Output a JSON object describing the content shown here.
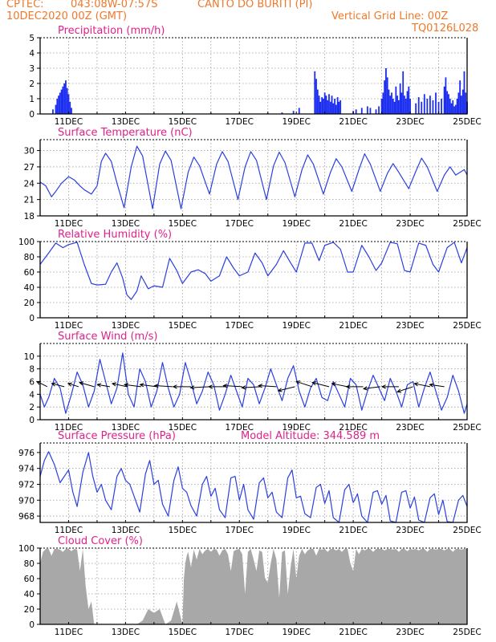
{
  "header": {
    "source": "CPTEC:",
    "coords": "043:08W-07:57S",
    "location": "CANTO DO BURITI (PI)",
    "datetime": "10DEC2020 00Z (GMT)",
    "grid_note": "Vertical Grid Line: 00Z",
    "code": "TQ0126L028"
  },
  "colors": {
    "header": "#f0782a",
    "title": "#e0208c",
    "series": "#2a3fe0",
    "bar": "#1c2ef0",
    "cloud": "#a8a8a8"
  },
  "x_axis": {
    "start_day": 10,
    "end_day": 25,
    "tick_labels": [
      "11DEC",
      "13DEC",
      "15DEC",
      "17DEC",
      "19DEC",
      "21DEC",
      "23DEC",
      "25DEC"
    ]
  },
  "chart_data": [
    {
      "id": "precip",
      "type": "bar",
      "title": "Precipitation (mm/h)",
      "ylim": [
        0,
        5
      ],
      "yticks": [
        0,
        1,
        2,
        3,
        4,
        5
      ],
      "x": [
        10.45,
        10.55,
        10.6,
        10.65,
        10.7,
        10.75,
        10.8,
        10.85,
        10.9,
        10.95,
        11.0,
        11.05,
        11.1,
        12.9,
        14.0,
        15.0,
        16.0,
        17.0,
        18.0,
        18.5,
        18.9,
        19.1,
        19.65,
        19.7,
        19.75,
        19.8,
        19.85,
        19.9,
        19.95,
        20.0,
        20.05,
        20.1,
        20.15,
        20.2,
        20.25,
        20.3,
        20.35,
        20.4,
        20.45,
        20.5,
        20.55,
        21.0,
        21.1,
        21.3,
        21.5,
        21.6,
        21.8,
        21.9,
        22.0,
        22.05,
        22.1,
        22.15,
        22.2,
        22.25,
        22.3,
        22.35,
        22.4,
        22.45,
        22.5,
        22.55,
        22.6,
        22.65,
        22.7,
        22.75,
        22.8,
        22.85,
        22.9,
        22.95,
        23.0,
        23.2,
        23.3,
        23.4,
        23.5,
        23.6,
        23.7,
        23.8,
        23.9,
        24.0,
        24.1,
        24.2,
        24.25,
        24.3,
        24.35,
        24.4,
        24.45,
        24.5,
        24.55,
        24.6,
        24.65,
        24.7,
        24.75,
        24.8,
        24.85,
        24.9,
        24.95,
        25.0
      ],
      "values": [
        0.3,
        0.6,
        1.0,
        1.2,
        1.4,
        1.6,
        1.8,
        2.0,
        2.2,
        1.7,
        1.3,
        0.8,
        0.4,
        0.05,
        0.05,
        0.05,
        0.05,
        0.05,
        0.05,
        0.1,
        0.2,
        0.4,
        2.8,
        2.3,
        1.6,
        1.2,
        0.8,
        1.1,
        1.0,
        1.4,
        1.2,
        0.9,
        1.3,
        0.8,
        1.2,
        0.7,
        1.0,
        0.6,
        1.1,
        0.8,
        0.9,
        0.2,
        0.3,
        0.4,
        0.5,
        0.4,
        0.3,
        0.5,
        1.0,
        1.4,
        2.2,
        3.0,
        2.4,
        1.6,
        1.2,
        1.4,
        1.0,
        0.8,
        1.8,
        1.2,
        0.9,
        2.0,
        1.4,
        2.8,
        1.2,
        1.0,
        1.5,
        1.8,
        1.0,
        0.7,
        1.1,
        0.8,
        1.3,
        1.0,
        1.2,
        0.9,
        1.4,
        0.8,
        1.0,
        1.8,
        2.4,
        1.5,
        1.3,
        1.0,
        0.7,
        0.9,
        0.5,
        0.6,
        1.0,
        1.4,
        2.2,
        1.2,
        1.6,
        2.8,
        1.4,
        0.8
      ]
    },
    {
      "id": "temp",
      "type": "line",
      "title": "Surface Temperature (nC)",
      "ylim": [
        18,
        32
      ],
      "yticks": [
        18,
        21,
        24,
        27,
        30
      ],
      "x": [
        10.0,
        10.2,
        10.4,
        10.55,
        10.75,
        11.0,
        11.2,
        11.4,
        11.55,
        11.8,
        12.0,
        12.15,
        12.3,
        12.5,
        12.7,
        12.95,
        13.2,
        13.4,
        13.6,
        13.95,
        14.2,
        14.4,
        14.6,
        14.95,
        15.2,
        15.4,
        15.6,
        15.95,
        16.2,
        16.4,
        16.6,
        16.95,
        17.2,
        17.4,
        17.6,
        17.95,
        18.2,
        18.4,
        18.6,
        18.95,
        19.2,
        19.4,
        19.6,
        19.95,
        20.2,
        20.4,
        20.6,
        20.95,
        21.2,
        21.4,
        21.6,
        21.95,
        22.2,
        22.4,
        22.6,
        22.95,
        23.2,
        23.4,
        23.6,
        23.95,
        24.2,
        24.4,
        24.6,
        24.9,
        25.0
      ],
      "values": [
        24.2,
        23.5,
        21.5,
        22.5,
        24.0,
        25.2,
        24.6,
        23.5,
        22.8,
        22.0,
        23.5,
        28.0,
        29.5,
        28.0,
        24.0,
        19.5,
        27.0,
        30.8,
        29.0,
        19.3,
        27.5,
        29.9,
        28.2,
        19.3,
        26.0,
        28.8,
        27.2,
        22.0,
        27.5,
        29.8,
        28.0,
        21.0,
        27.0,
        29.8,
        28.2,
        21.0,
        27.2,
        29.7,
        27.8,
        21.5,
        26.5,
        29.2,
        27.5,
        22.0,
        26.0,
        28.5,
        27.0,
        22.5,
        26.5,
        29.4,
        27.5,
        22.5,
        25.8,
        27.6,
        26.0,
        23.0,
        26.2,
        28.6,
        27.0,
        22.5,
        25.5,
        27.0,
        25.5,
        26.5,
        25.5
      ]
    },
    {
      "id": "rh",
      "type": "line",
      "title": "Relative Humidity (%)",
      "ylim": [
        0,
        100
      ],
      "yticks": [
        0,
        20,
        40,
        60,
        80,
        100
      ],
      "x": [
        10.0,
        10.3,
        10.55,
        10.8,
        11.0,
        11.3,
        11.55,
        11.8,
        12.0,
        12.3,
        12.5,
        12.7,
        12.9,
        13.05,
        13.2,
        13.4,
        13.55,
        13.8,
        14.0,
        14.3,
        14.55,
        14.8,
        15.0,
        15.3,
        15.55,
        15.8,
        16.0,
        16.3,
        16.55,
        16.8,
        17.0,
        17.3,
        17.55,
        17.8,
        18.0,
        18.3,
        18.55,
        18.8,
        19.0,
        19.3,
        19.55,
        19.8,
        20.0,
        20.3,
        20.55,
        20.8,
        21.0,
        21.3,
        21.55,
        21.8,
        22.0,
        22.3,
        22.55,
        22.8,
        23.0,
        23.3,
        23.55,
        23.8,
        24.0,
        24.3,
        24.55,
        24.8,
        25.0
      ],
      "values": [
        70,
        85,
        98,
        92,
        96,
        99,
        70,
        45,
        43,
        44,
        60,
        72,
        52,
        30,
        24,
        35,
        55,
        38,
        42,
        40,
        78,
        62,
        45,
        60,
        63,
        58,
        48,
        55,
        80,
        65,
        55,
        60,
        85,
        72,
        55,
        70,
        88,
        72,
        60,
        98,
        98,
        75,
        95,
        99,
        90,
        60,
        60,
        95,
        80,
        62,
        72,
        99,
        97,
        62,
        60,
        98,
        95,
        70,
        60,
        92,
        99,
        72,
        92
      ]
    },
    {
      "id": "wind",
      "type": "line",
      "title": "Surface Wind (m/s)",
      "ylim": [
        0,
        12
      ],
      "yticks": [
        0,
        2,
        4,
        6,
        8,
        10
      ],
      "x": [
        10.0,
        10.15,
        10.3,
        10.5,
        10.7,
        10.9,
        11.1,
        11.3,
        11.5,
        11.7,
        11.9,
        12.1,
        12.3,
        12.5,
        12.7,
        12.9,
        13.1,
        13.3,
        13.5,
        13.7,
        13.9,
        14.1,
        14.3,
        14.5,
        14.7,
        14.9,
        15.1,
        15.3,
        15.5,
        15.7,
        15.9,
        16.1,
        16.3,
        16.5,
        16.7,
        16.9,
        17.1,
        17.3,
        17.5,
        17.7,
        17.9,
        18.1,
        18.3,
        18.5,
        18.7,
        18.9,
        19.1,
        19.3,
        19.5,
        19.7,
        19.9,
        20.1,
        20.3,
        20.5,
        20.7,
        20.9,
        21.1,
        21.3,
        21.5,
        21.7,
        21.9,
        22.1,
        22.3,
        22.5,
        22.7,
        22.9,
        23.1,
        23.3,
        23.5,
        23.7,
        23.9,
        24.1,
        24.3,
        24.5,
        24.7,
        24.9,
        25.0
      ],
      "values": [
        4.0,
        2.0,
        3.5,
        6.5,
        5.0,
        1.0,
        4.0,
        7.5,
        5.5,
        2.0,
        4.5,
        9.5,
        6.0,
        2.5,
        5.0,
        10.5,
        4.0,
        2.0,
        8.0,
        6.0,
        2.0,
        4.5,
        9.0,
        5.0,
        2.0,
        4.0,
        9.0,
        6.0,
        2.5,
        4.5,
        7.5,
        5.5,
        1.5,
        4.0,
        7.0,
        4.5,
        2.0,
        6.5,
        5.5,
        2.5,
        5.0,
        8.0,
        5.5,
        3.0,
        6.5,
        8.5,
        4.5,
        2.0,
        5.0,
        6.5,
        3.5,
        3.0,
        6.0,
        4.0,
        2.0,
        6.5,
        5.5,
        1.5,
        4.5,
        7.0,
        5.0,
        3.0,
        6.5,
        4.5,
        2.0,
        5.5,
        6.0,
        2.0,
        5.0,
        7.5,
        4.5,
        1.5,
        3.5,
        7.0,
        4.5,
        1.0,
        2.5
      ],
      "arrows": [
        [
          10.25,
          -0.5,
          0.25
        ],
        [
          10.85,
          -0.6,
          0.15
        ],
        [
          11.35,
          -0.5,
          0.15
        ],
        [
          11.9,
          -0.7,
          0.2
        ],
        [
          12.45,
          -0.6,
          0.1
        ],
        [
          13.05,
          -0.7,
          0.15
        ],
        [
          13.55,
          -0.8,
          0.1
        ],
        [
          14.1,
          -0.8,
          0.1
        ],
        [
          14.65,
          -0.85,
          0.05
        ],
        [
          15.3,
          -0.85,
          0.0
        ],
        [
          15.95,
          -0.9,
          -0.05
        ],
        [
          16.55,
          -0.85,
          0.0
        ],
        [
          17.1,
          -0.9,
          0.05
        ],
        [
          17.75,
          -0.9,
          -0.05
        ],
        [
          18.3,
          -0.85,
          0.05
        ],
        [
          18.95,
          -0.8,
          -0.2
        ],
        [
          19.55,
          -0.75,
          0.25
        ],
        [
          20.15,
          -0.8,
          0.2
        ],
        [
          20.8,
          -0.75,
          0.15
        ],
        [
          21.35,
          -0.8,
          0.0
        ],
        [
          21.95,
          -0.8,
          -0.1
        ],
        [
          22.6,
          -0.8,
          0.0
        ],
        [
          23.1,
          -0.75,
          -0.25
        ],
        [
          23.7,
          -0.75,
          0.15
        ],
        [
          24.2,
          -0.7,
          0.1
        ]
      ]
    },
    {
      "id": "pres",
      "type": "line",
      "title": "Surface Pressure (hPa)",
      "subtitle": "Model Altitude: 344.589 m",
      "ylim": [
        967.2,
        977.2
      ],
      "yticks": [
        968,
        970,
        972,
        974,
        976
      ],
      "x": [
        10.0,
        10.15,
        10.3,
        10.5,
        10.7,
        10.85,
        11.0,
        11.15,
        11.3,
        11.5,
        11.7,
        11.85,
        12.0,
        12.15,
        12.3,
        12.5,
        12.7,
        12.85,
        13.0,
        13.15,
        13.3,
        13.5,
        13.7,
        13.85,
        14.0,
        14.15,
        14.3,
        14.5,
        14.7,
        14.85,
        15.0,
        15.15,
        15.3,
        15.5,
        15.7,
        15.85,
        16.0,
        16.15,
        16.3,
        16.5,
        16.7,
        16.85,
        17.0,
        17.15,
        17.3,
        17.5,
        17.7,
        17.85,
        18.0,
        18.15,
        18.3,
        18.5,
        18.7,
        18.85,
        19.0,
        19.15,
        19.3,
        19.5,
        19.7,
        19.85,
        20.0,
        20.15,
        20.3,
        20.5,
        20.7,
        20.85,
        21.0,
        21.15,
        21.3,
        21.5,
        21.7,
        21.85,
        22.0,
        22.15,
        22.3,
        22.5,
        22.7,
        22.85,
        23.0,
        23.15,
        23.3,
        23.5,
        23.7,
        23.85,
        24.0,
        24.15,
        24.3,
        24.5,
        24.7,
        24.85,
        25.0
      ],
      "values": [
        973.0,
        975.0,
        976.1,
        974.5,
        972.2,
        973.0,
        973.8,
        971.0,
        969.2,
        973.5,
        976.0,
        973.0,
        971.0,
        972.0,
        970.0,
        968.8,
        973.0,
        974.0,
        972.5,
        972.0,
        970.5,
        968.5,
        973.3,
        975.0,
        972.0,
        972.5,
        969.5,
        968.0,
        972.5,
        974.2,
        971.5,
        971.0,
        969.3,
        968.0,
        972.0,
        973.0,
        970.5,
        971.5,
        968.8,
        967.8,
        972.8,
        973.0,
        970.0,
        972.0,
        968.8,
        967.6,
        972.2,
        972.8,
        970.3,
        971.0,
        968.5,
        967.8,
        972.8,
        973.8,
        970.3,
        970.5,
        968.3,
        967.8,
        971.6,
        972.0,
        969.6,
        971.2,
        967.8,
        967.0,
        971.3,
        972.0,
        969.7,
        970.8,
        968.0,
        967.0,
        971.0,
        971.2,
        969.5,
        970.6,
        967.4,
        966.8,
        971.0,
        971.2,
        969.0,
        970.4,
        967.5,
        966.8,
        970.3,
        970.8,
        968.2,
        970.0,
        967.3,
        966.8,
        970.0,
        970.6,
        969.2
      ]
    },
    {
      "id": "cloud",
      "type": "area",
      "title": "Cloud Cover (%)",
      "ylim": [
        0,
        100
      ],
      "yticks": [
        0,
        20,
        40,
        60,
        80,
        100
      ],
      "x": [
        10.0,
        10.1,
        10.2,
        10.3,
        10.4,
        10.5,
        10.6,
        10.7,
        10.8,
        10.9,
        11.0,
        11.1,
        11.2,
        11.3,
        11.4,
        11.5,
        11.6,
        11.7,
        11.8,
        11.9,
        12.0,
        12.2,
        12.4,
        12.6,
        12.8,
        13.0,
        13.2,
        13.4,
        13.6,
        13.8,
        14.0,
        14.2,
        14.4,
        14.6,
        14.8,
        15.0,
        15.05,
        15.1,
        15.15,
        15.2,
        15.3,
        15.4,
        15.5,
        15.6,
        15.7,
        15.8,
        15.9,
        16.0,
        16.1,
        16.2,
        16.3,
        16.4,
        16.5,
        16.6,
        16.7,
        16.8,
        16.9,
        17.0,
        17.1,
        17.2,
        17.3,
        17.4,
        17.5,
        17.6,
        17.7,
        17.8,
        17.9,
        18.0,
        18.1,
        18.2,
        18.3,
        18.4,
        18.5,
        18.6,
        18.7,
        18.8,
        18.9,
        19.0,
        19.1,
        19.2,
        19.3,
        19.4,
        19.5,
        19.6,
        19.7,
        19.8,
        19.9,
        20.0,
        20.1,
        20.2,
        20.3,
        20.4,
        20.5,
        20.6,
        20.7,
        20.8,
        20.9,
        21.0,
        21.1,
        21.2,
        21.3,
        21.4,
        21.5,
        21.6,
        21.7,
        21.8,
        21.9,
        22.0,
        22.1,
        22.2,
        22.3,
        22.4,
        22.5,
        22.6,
        22.7,
        22.8,
        22.9,
        23.0,
        23.1,
        23.2,
        23.3,
        23.4,
        23.5,
        23.6,
        23.7,
        23.8,
        23.9,
        24.0,
        24.1,
        24.2,
        24.3,
        24.4,
        24.5,
        24.6,
        24.7,
        24.8,
        24.9,
        25.0
      ],
      "values": [
        80,
        95,
        99,
        99,
        90,
        99,
        99,
        98,
        95,
        99,
        99,
        96,
        99,
        98,
        70,
        99,
        50,
        20,
        30,
        0,
        0,
        0,
        0,
        0,
        0,
        0,
        0,
        0,
        5,
        20,
        15,
        20,
        0,
        5,
        30,
        0,
        60,
        80,
        90,
        95,
        75,
        98,
        85,
        99,
        92,
        97,
        99,
        95,
        99,
        98,
        90,
        97,
        99,
        92,
        70,
        96,
        98,
        99,
        92,
        40,
        95,
        99,
        85,
        70,
        97,
        95,
        60,
        55,
        80,
        99,
        85,
        35,
        95,
        97,
        40,
        75,
        99,
        60,
        90,
        99,
        92,
        97,
        99,
        99,
        90,
        99,
        98,
        99,
        95,
        99,
        99,
        97,
        99,
        95,
        99,
        99,
        80,
        70,
        99,
        92,
        99,
        97,
        99,
        99,
        95,
        99,
        99,
        99,
        97,
        99,
        99,
        98,
        99,
        95,
        99,
        99,
        96,
        99,
        98,
        99,
        97,
        99,
        99,
        95,
        99,
        99,
        98,
        99,
        99,
        97,
        99,
        99,
        95,
        99,
        99,
        98,
        99,
        99
      ]
    }
  ]
}
